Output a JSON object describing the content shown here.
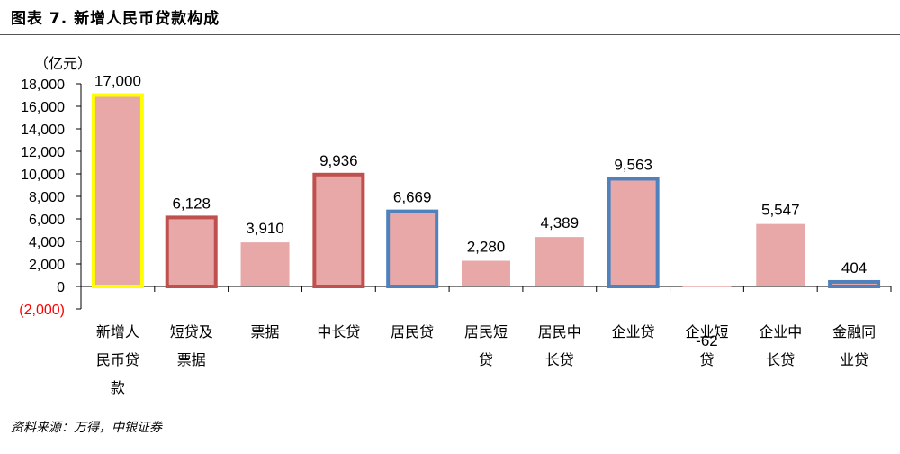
{
  "title": "图表 7. 新增人民币贷款构成",
  "source": "资料来源：万得，中银证券",
  "chart_data": {
    "type": "bar",
    "unit": "（亿元）",
    "categories": [
      [
        "新增人",
        "民币贷",
        "款"
      ],
      [
        "短贷及",
        "票据"
      ],
      [
        "票据"
      ],
      [
        "中长贷"
      ],
      [
        "居民贷"
      ],
      [
        "居民短",
        "贷"
      ],
      [
        "居民中",
        "长贷"
      ],
      [
        "企业贷"
      ],
      [
        "企业短",
        "贷"
      ],
      [
        "企业中",
        "长贷"
      ],
      [
        "金融同",
        "业贷"
      ]
    ],
    "values": [
      17000,
      6128,
      3910,
      9936,
      6669,
      2280,
      4389,
      9563,
      -62,
      5547,
      404
    ],
    "data_labels": [
      "17,000",
      "6,128",
      "3,910",
      "9,936",
      "6,669",
      "2,280",
      "4,389",
      "9,563",
      "-62",
      "5,547",
      "404"
    ],
    "highlight": [
      "yellow",
      "red",
      "none",
      "red",
      "blue",
      "none",
      "none",
      "blue",
      "none",
      "none",
      "blue"
    ],
    "ylim": [
      -2000,
      18000
    ],
    "yticks": [
      -2000,
      0,
      2000,
      4000,
      6000,
      8000,
      10000,
      12000,
      14000,
      16000,
      18000
    ],
    "ytick_labels": [
      "(2,000)",
      "0",
      "2,000",
      "4,000",
      "6,000",
      "8,000",
      "10,000",
      "12,000",
      "14,000",
      "16,000",
      "18,000"
    ],
    "colors": {
      "bar_fill": "#e8a8a8",
      "yellow": "#ffff00",
      "red": "#c0504d",
      "blue": "#4f81bd",
      "negative_tick": "#ff0000"
    }
  }
}
